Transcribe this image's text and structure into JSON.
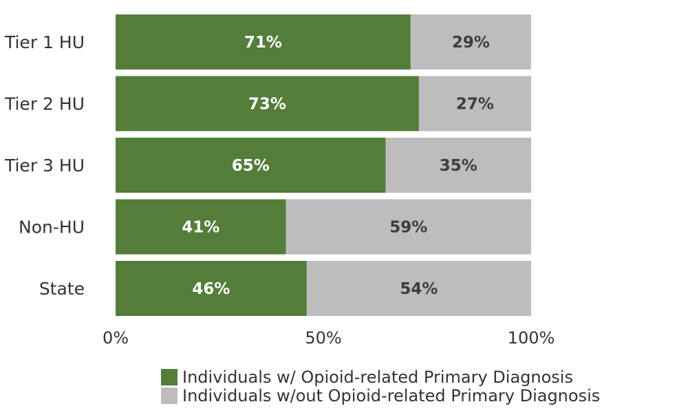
{
  "chart_data": {
    "type": "bar",
    "orientation": "horizontal",
    "stacked": true,
    "categories": [
      "Tier 1 HU",
      "Tier 2 HU",
      "Tier 3 HU",
      "Non-HU",
      "State"
    ],
    "series": [
      {
        "name": "Individuals w/ Opioid-related Primary Diagnosis",
        "color": "#547d3a",
        "label_color": "#ffffff",
        "values": [
          71,
          73,
          65,
          41,
          46
        ]
      },
      {
        "name": "Individuals w/out Opioid-related Primary Diagnosis",
        "color": "#bdbdbd",
        "label_color": "#3d3d3d",
        "values": [
          29,
          27,
          35,
          59,
          54
        ]
      }
    ],
    "value_suffix": "%",
    "xlim": [
      0,
      100
    ],
    "xticks": [
      "0%",
      "50%",
      "100%"
    ],
    "grid": false,
    "legend_position": "bottom"
  }
}
